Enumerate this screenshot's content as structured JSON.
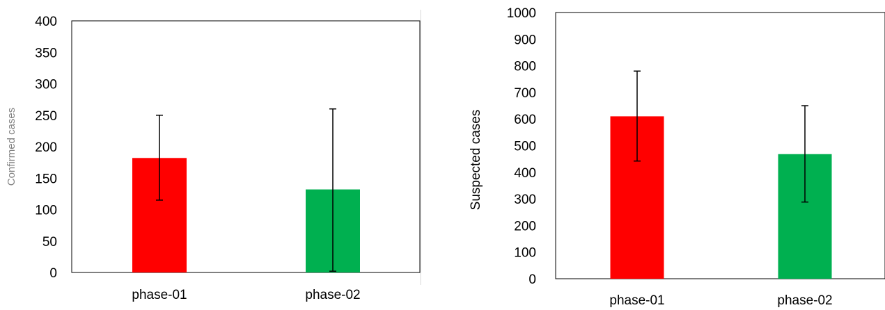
{
  "chart_data": [
    {
      "type": "bar",
      "categories": [
        "phase-01",
        "phase-02"
      ],
      "values": [
        182,
        132
      ],
      "errors": [
        {
          "low": 115,
          "high": 250
        },
        {
          "low": 2,
          "high": 260
        }
      ],
      "colors": [
        "#ff0000",
        "#00b050"
      ],
      "title": "",
      "xlabel": "",
      "ylabel": "Confirmed cases",
      "ylim": [
        0,
        400
      ],
      "yticks": [
        0,
        50,
        100,
        150,
        200,
        250,
        300,
        350,
        400
      ],
      "grid": false,
      "legend": "none"
    },
    {
      "type": "bar",
      "categories": [
        "phase-01",
        "phase-02"
      ],
      "values": [
        610,
        468
      ],
      "errors": [
        {
          "low": 442,
          "high": 780
        },
        {
          "low": 288,
          "high": 650
        }
      ],
      "colors": [
        "#ff0000",
        "#00b050"
      ],
      "title": "",
      "xlabel": "",
      "ylabel": "Suspected cases",
      "ylim": [
        0,
        1000
      ],
      "yticks": [
        0,
        100,
        200,
        300,
        400,
        500,
        600,
        700,
        800,
        900,
        1000
      ],
      "grid": false,
      "legend": "none"
    }
  ]
}
